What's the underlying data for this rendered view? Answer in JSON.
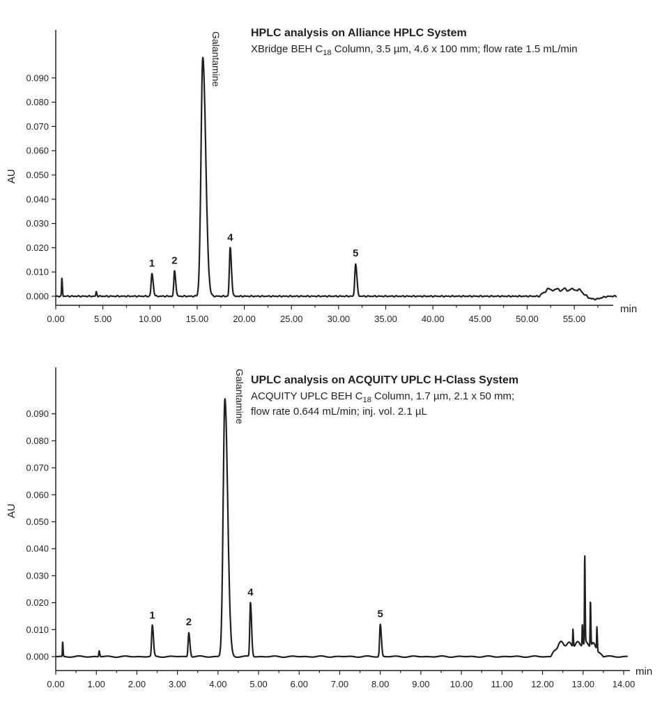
{
  "chart_data": [
    {
      "type": "line",
      "title": "HPLC analysis on Alliance HPLC System",
      "subtitle": {
        "pre": "XBridge BEH C",
        "sub": "18",
        "post": " Column, 3.5 µm, 4.6 x 100 mm; flow rate 1.5 mL/min"
      },
      "xlabel": "min",
      "ylabel": "AU",
      "xlim": [
        0,
        59.5
      ],
      "ylim": [
        -0.0013,
        0.0985
      ],
      "x_ticks": [
        "0.00",
        "5.00",
        "10.00",
        "15.00",
        "20.00",
        "25.00",
        "30.00",
        "35.00",
        "40.00",
        "45.00",
        "50.00",
        "55.00"
      ],
      "y_ticks": [
        "0.000",
        "0.010",
        "0.020",
        "0.030",
        "0.040",
        "0.050",
        "0.060",
        "0.070",
        "0.080",
        "0.090"
      ],
      "x_tick_step": 5,
      "y_tick_step": 0.01,
      "x_end": 59.5,
      "baseline": 0.0,
      "peaks": [
        {
          "label": "",
          "rt": 0.65,
          "height": 0.0075,
          "width": 0.08
        },
        {
          "label": "",
          "rt": 4.3,
          "height": 0.0018,
          "width": 0.1
        },
        {
          "label": "1",
          "rt": 10.2,
          "height": 0.0093,
          "width": 0.2
        },
        {
          "label": "2",
          "rt": 12.6,
          "height": 0.0105,
          "width": 0.18
        },
        {
          "label": "Galantamine",
          "rt": 15.6,
          "height": 0.0985,
          "width": 0.45,
          "off_scale": true
        },
        {
          "label": "4",
          "rt": 18.5,
          "height": 0.02,
          "width": 0.2
        },
        {
          "label": "5",
          "rt": 31.8,
          "height": 0.0135,
          "width": 0.2
        }
      ],
      "hump": {
        "start": 51.3,
        "end": 56.5,
        "height": 0.0032
      },
      "dip_after": {
        "at": 57.2,
        "depth": -0.0012
      }
    },
    {
      "type": "line",
      "title": "UPLC analysis on ACQUITY UPLC H-Class System",
      "subtitle": {
        "pre": "ACQUITY UPLC BEH C",
        "sub": "18",
        "post": " Column, 1.7 µm, 2.1 x 50 mm;"
      },
      "subtitle2": "flow rate 0.644 mL/min; inj. vol. 2.1 µL",
      "xlabel": "min",
      "ylabel": "AU",
      "xlim": [
        0,
        14.1
      ],
      "ylim": [
        -0.0022,
        0.0955
      ],
      "x_ticks": [
        "0.00",
        "1.00",
        "2.00",
        "3.00",
        "4.00",
        "5.00",
        "6.00",
        "7.00",
        "8.00",
        "9.00",
        "10.00",
        "11.00",
        "12.00",
        "13.00",
        "14.00"
      ],
      "y_ticks": [
        "0.000",
        "0.010",
        "0.020",
        "0.030",
        "0.040",
        "0.050",
        "0.060",
        "0.070",
        "0.080",
        "0.090"
      ],
      "x_tick_step": 1,
      "y_tick_step": 0.01,
      "x_end": 14.1,
      "baseline": 0.0,
      "peaks": [
        {
          "label": "",
          "rt": 0.17,
          "height": 0.0055,
          "width": 0.015
        },
        {
          "label": "",
          "rt": 1.07,
          "height": 0.0022,
          "width": 0.02
        },
        {
          "label": "1",
          "rt": 2.38,
          "height": 0.0115,
          "width": 0.04
        },
        {
          "label": "2",
          "rt": 3.28,
          "height": 0.009,
          "width": 0.04
        },
        {
          "label": "Galantamine",
          "rt": 4.17,
          "height": 0.0955,
          "width": 0.1,
          "off_scale": true
        },
        {
          "label": "4",
          "rt": 4.8,
          "height": 0.02,
          "width": 0.04
        },
        {
          "label": "5",
          "rt": 8.0,
          "height": 0.012,
          "width": 0.04
        },
        {
          "label": "",
          "rt": 12.75,
          "height": 0.0065,
          "width": 0.015
        },
        {
          "label": "",
          "rt": 12.98,
          "height": 0.008,
          "width": 0.015
        },
        {
          "label": "",
          "rt": 13.04,
          "height": 0.033,
          "width": 0.015
        },
        {
          "label": "",
          "rt": 13.18,
          "height": 0.017,
          "width": 0.015
        },
        {
          "label": "",
          "rt": 13.34,
          "height": 0.0085,
          "width": 0.015
        }
      ],
      "hump": {
        "start": 12.2,
        "end": 13.5,
        "height": 0.0055
      },
      "dip_after": {
        "at": 13.6,
        "depth": 0.0
      }
    }
  ]
}
